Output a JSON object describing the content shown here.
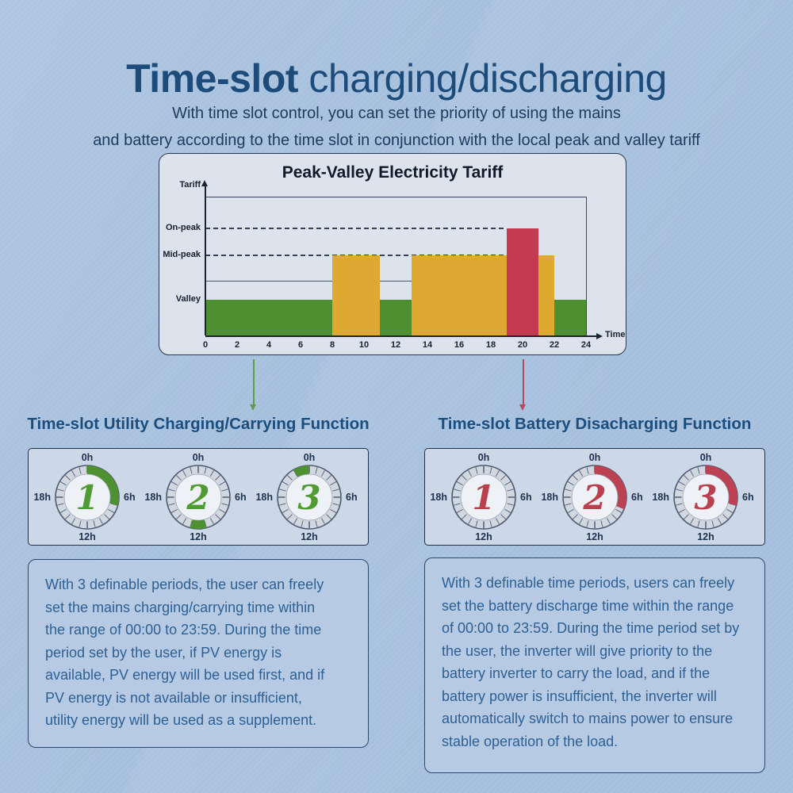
{
  "page": {
    "title_bold": "Time-slot",
    "title_rest": " charging/discharging",
    "subtitle_line1": "With time slot control, you can set the priority of using the mains",
    "subtitle_line2": "and battery according to the time slot in conjunction with the local peak and valley tariff"
  },
  "colors": {
    "background": "#a7c1df",
    "title": "#1e4c7a",
    "subtitle": "#1c3c60",
    "heading": "#1b4d7d",
    "panel_text": "#2e6094",
    "valley_green": "#4e8f31",
    "mid_peak_yellow": "#dfa831",
    "on_peak_red": "#c23b4e",
    "arrow_green": "#5f9d4d",
    "arrow_red": "#b04a5c",
    "clock_arc_green": "#4e9130",
    "clock_number_green": "#4f9c35",
    "clock_arc_red": "#bc4152",
    "clock_number_red": "#b8404f"
  },
  "chart_data": {
    "type": "bar",
    "title": "Peak-Valley Electricity Tariff",
    "xlabel": "Time",
    "ylabel": "Tariff",
    "x_range": [
      0,
      24
    ],
    "x_ticks": [
      0,
      2,
      4,
      6,
      8,
      10,
      12,
      14,
      16,
      18,
      20,
      22,
      24
    ],
    "levels": [
      "Valley",
      "Mid-peak",
      "On-peak"
    ],
    "segments": [
      {
        "start_hour": 0,
        "end_hour": 8,
        "level": "Valley"
      },
      {
        "start_hour": 8,
        "end_hour": 11,
        "level": "Mid-peak"
      },
      {
        "start_hour": 11,
        "end_hour": 13,
        "level": "Valley"
      },
      {
        "start_hour": 13,
        "end_hour": 19,
        "level": "Mid-peak"
      },
      {
        "start_hour": 19,
        "end_hour": 21,
        "level": "On-peak"
      },
      {
        "start_hour": 21,
        "end_hour": 22,
        "level": "Mid-peak"
      },
      {
        "start_hour": 22,
        "end_hour": 24,
        "level": "Valley"
      }
    ],
    "dashed_gridlines": [
      {
        "level": "On-peak",
        "end_hour": 19
      },
      {
        "level": "Mid-peak",
        "end_hour": 19
      }
    ],
    "minor_solid_line_end_hour": 13,
    "legend": false
  },
  "left_section": {
    "heading": "Time-slot Utility Charging/Carrying Function",
    "arc_color_key": "clock_arc_green",
    "number_color_key": "clock_number_green",
    "clock_labels": {
      "top": "0h",
      "right": "6h",
      "bottom": "12h",
      "left": "18h"
    },
    "clocks": [
      {
        "number": "1",
        "arc_start_hour": 0,
        "arc_end_hour": 7
      },
      {
        "number": "2",
        "arc_start_hour": 11,
        "arc_end_hour": 13
      },
      {
        "number": "3",
        "arc_start_hour": 22,
        "arc_end_hour": 24
      }
    ],
    "description_lines": [
      "With 3 definable periods, the user can freely",
      "set the mains charging/carrying time within",
      "the range of 00:00 to 23:59. During the time",
      "period set by the user, if PV energy is",
      "available, PV energy will be used first, and if",
      "PV energy is not available or insufficient,",
      "utility energy will be used as a supplement."
    ]
  },
  "right_section": {
    "heading": "Time-slot Battery Disacharging Function",
    "arc_color_key": "clock_arc_red",
    "number_color_key": "clock_number_red",
    "clock_labels": {
      "top": "0h",
      "right": "6h",
      "bottom": "12h",
      "left": "18h"
    },
    "clocks": [
      {
        "number": "1",
        "arc_start_hour": null,
        "arc_end_hour": null
      },
      {
        "number": "2",
        "arc_start_hour": 0,
        "arc_end_hour": 7.5
      },
      {
        "number": "3",
        "arc_start_hour": 0,
        "arc_end_hour": 7
      }
    ],
    "description_lines": [
      "With 3 definable time periods, users can freely",
      "set the battery discharge time within the range",
      "of 00:00 to 23:59. During the time period set by",
      "the user, the inverter will give priority to the",
      "battery inverter to carry the load, and if the",
      "battery power is insufficient, the inverter will",
      "automatically switch to mains power to ensure",
      "stable operation of the load."
    ]
  }
}
